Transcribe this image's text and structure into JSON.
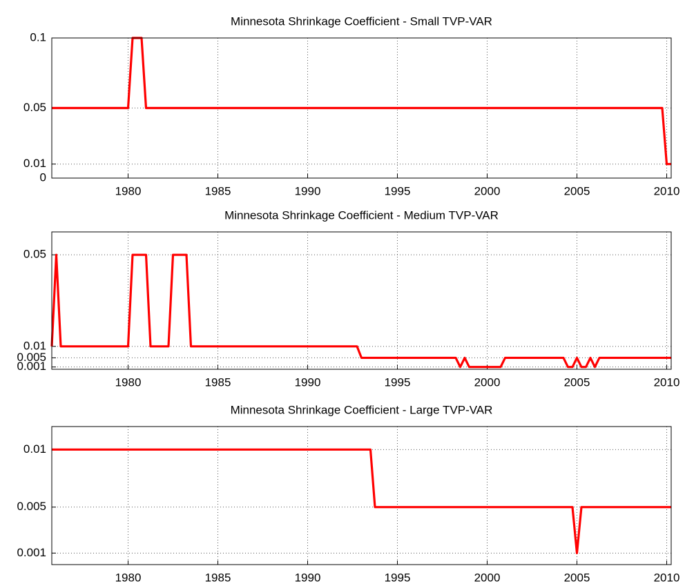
{
  "chart_data": [
    {
      "type": "line",
      "title": "Minnesota Shrinkage Coefficient - Small TVP-VAR",
      "x": [
        1975.75,
        1980.0,
        1980.25,
        1980.75,
        1981.0,
        2009.75,
        2010.0,
        2010.25
      ],
      "values": [
        0.05,
        0.05,
        0.1,
        0.1,
        0.05,
        0.05,
        0.01,
        0.01
      ],
      "color": "#ff0000",
      "xlim": [
        1975.75,
        2010.25
      ],
      "xticks": [
        1980,
        1985,
        1990,
        1995,
        2000,
        2005,
        2010
      ],
      "ylim": [
        0,
        0.1
      ],
      "yticks": [
        0,
        0.01,
        0.05,
        0.1
      ],
      "grid": true
    },
    {
      "type": "line",
      "title": "Minnesota Shrinkage Coefficient - Medium TVP-VAR",
      "x": [
        1975.75,
        1976.0,
        1976.25,
        1980.0,
        1980.25,
        1981.0,
        1981.25,
        1982.25,
        1982.5,
        1983.25,
        1983.5,
        1992.75,
        1993.0,
        1998.25,
        1998.5,
        1998.75,
        1999.0,
        2000.75,
        2001.0,
        2004.25,
        2004.5,
        2004.75,
        2005.0,
        2005.25,
        2005.5,
        2005.75,
        2006.0,
        2006.25,
        2010.25
      ],
      "values": [
        0.01,
        0.05,
        0.01,
        0.01,
        0.05,
        0.05,
        0.01,
        0.01,
        0.05,
        0.05,
        0.01,
        0.01,
        0.005,
        0.005,
        0.001,
        0.005,
        0.001,
        0.001,
        0.005,
        0.005,
        0.001,
        0.001,
        0.005,
        0.001,
        0.001,
        0.005,
        0.001,
        0.005,
        0.005
      ],
      "color": "#ff0000",
      "xlim": [
        1975.75,
        2010.25
      ],
      "xticks": [
        1980,
        1985,
        1990,
        1995,
        2000,
        2005,
        2010
      ],
      "ylim": [
        0,
        0.06
      ],
      "yticks": [
        0.001,
        0.005,
        0.01,
        0.05
      ],
      "grid": true
    },
    {
      "type": "line",
      "title": "Minnesota Shrinkage Coefficient - Large TVP-VAR",
      "x": [
        1975.75,
        1993.5,
        1993.75,
        2004.75,
        2005.0,
        2005.25,
        2010.25
      ],
      "values": [
        0.01,
        0.01,
        0.005,
        0.005,
        0.001,
        0.005,
        0.005
      ],
      "color": "#ff0000",
      "xlim": [
        1975.75,
        2010.25
      ],
      "xticks": [
        1980,
        1985,
        1990,
        1995,
        2000,
        2005,
        2010
      ],
      "ylim": [
        0,
        0.012
      ],
      "yticks": [
        0.001,
        0.005,
        0.01
      ],
      "grid": true
    }
  ]
}
